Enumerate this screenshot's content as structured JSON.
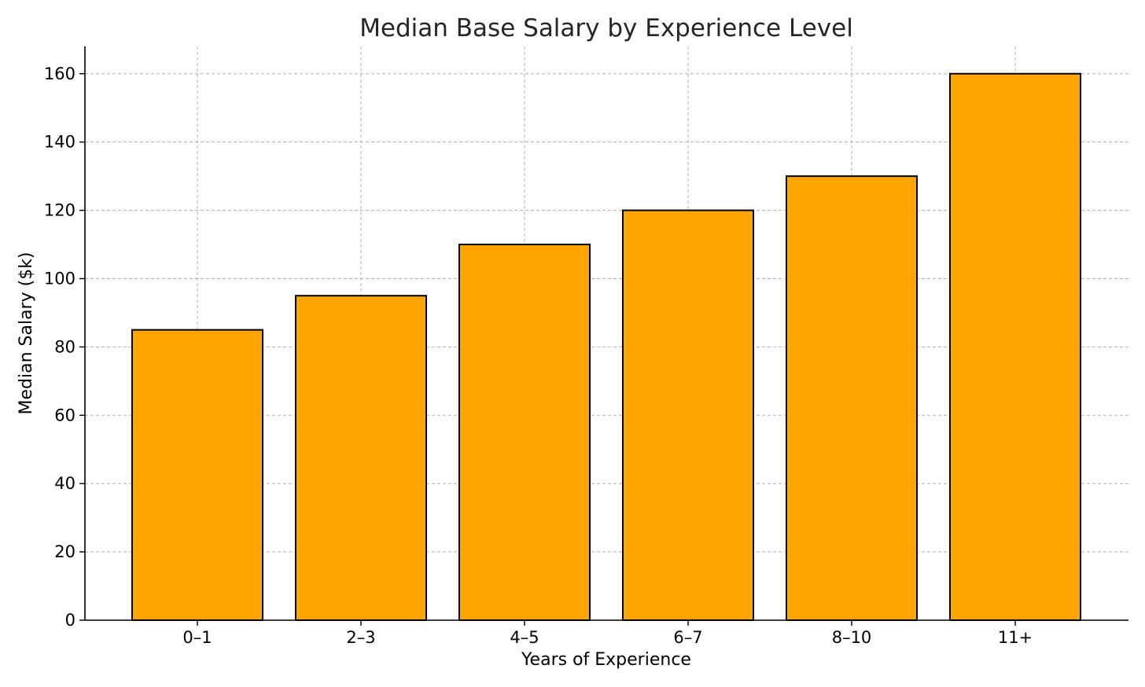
{
  "chart_data": {
    "type": "bar",
    "title": "Median Base Salary by Experience Level",
    "xlabel": "Years of Experience",
    "ylabel": "Median Salary ($k)",
    "categories": [
      "0–1",
      "2–3",
      "4–5",
      "6–7",
      "8–10",
      "11+"
    ],
    "values": [
      85,
      95,
      110,
      120,
      130,
      160
    ],
    "ylim": [
      0,
      168
    ],
    "yticks": [
      0,
      20,
      40,
      60,
      80,
      100,
      120,
      140,
      160
    ],
    "grid": true,
    "bar_color": "#FFA500",
    "edge_color": "#000000"
  }
}
